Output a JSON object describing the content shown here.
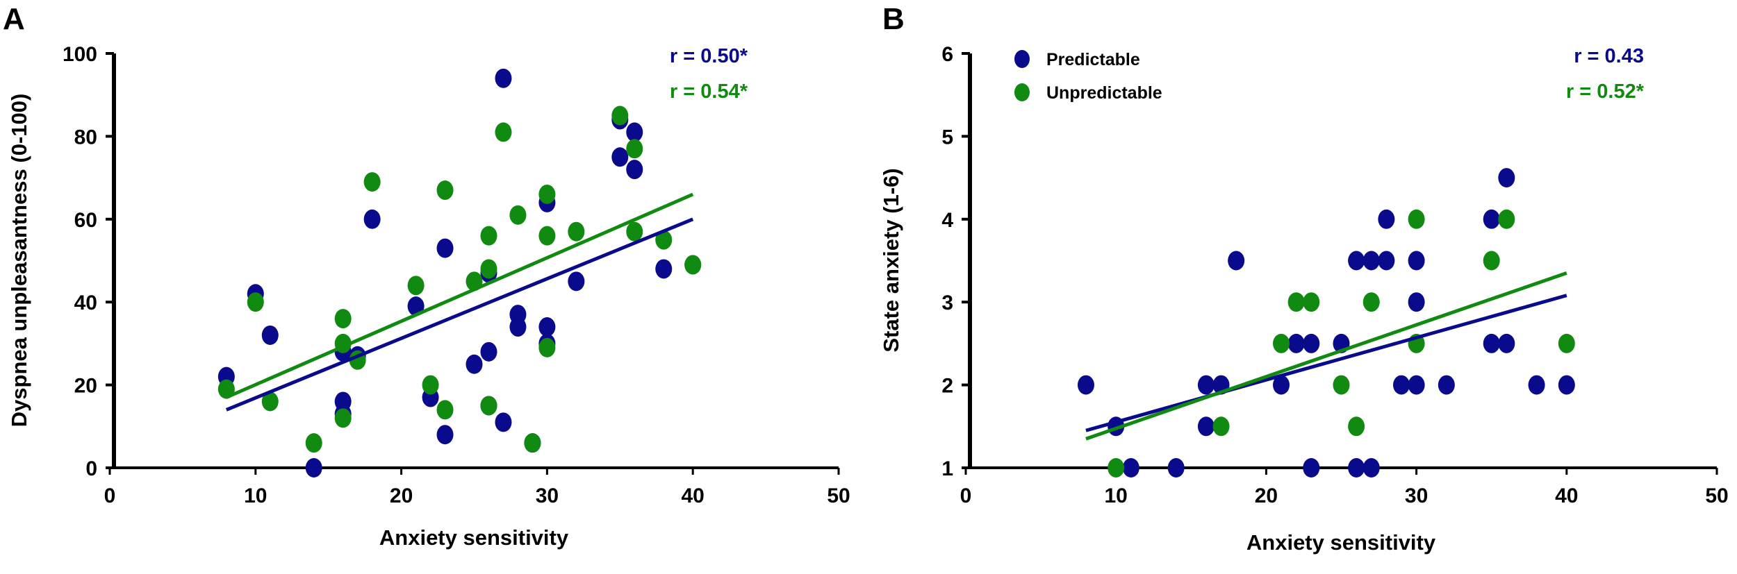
{
  "colors": {
    "predictable": "#0a0a8c",
    "unpredictable": "#118a11",
    "axis": "#000000"
  },
  "chart_data": [
    {
      "type": "scatter",
      "panel_label": "A",
      "xlabel": "Anxiety sensitivity",
      "ylabel": "Dyspnea unpleasantness (0-100)",
      "xlim": [
        0,
        50
      ],
      "ylim": [
        0,
        100
      ],
      "xticks": [
        0,
        10,
        20,
        30,
        40,
        50
      ],
      "yticks": [
        0,
        20,
        40,
        60,
        80,
        100
      ],
      "grid": false,
      "annotations": [
        {
          "text": "r = 0.50*",
          "series": "Predictable"
        },
        {
          "text": "r = 0.54*",
          "series": "Unpredictable"
        }
      ],
      "series": [
        {
          "name": "Predictable",
          "color": "#0a0a8c",
          "points": [
            [
              8,
              22
            ],
            [
              10,
              42
            ],
            [
              11,
              32
            ],
            [
              14,
              0
            ],
            [
              16,
              16
            ],
            [
              16,
              13
            ],
            [
              16,
              28
            ],
            [
              17,
              27
            ],
            [
              18,
              60
            ],
            [
              21,
              39
            ],
            [
              22,
              17
            ],
            [
              23,
              53
            ],
            [
              23,
              8
            ],
            [
              25,
              25
            ],
            [
              26,
              47
            ],
            [
              26,
              28
            ],
            [
              26,
              15
            ],
            [
              27,
              94
            ],
            [
              27,
              11
            ],
            [
              28,
              37
            ],
            [
              28,
              34
            ],
            [
              29,
              6
            ],
            [
              30,
              64
            ],
            [
              30,
              34
            ],
            [
              30,
              30
            ],
            [
              32,
              45
            ],
            [
              35,
              84
            ],
            [
              35,
              75
            ],
            [
              36,
              81
            ],
            [
              36,
              72
            ],
            [
              38,
              48
            ],
            [
              40,
              49
            ]
          ],
          "fit": [
            [
              8,
              14
            ],
            [
              40,
              60
            ]
          ]
        },
        {
          "name": "Unpredictable",
          "color": "#118a11",
          "points": [
            [
              8,
              19
            ],
            [
              10,
              40
            ],
            [
              11,
              16
            ],
            [
              14,
              6
            ],
            [
              16,
              36
            ],
            [
              16,
              30
            ],
            [
              16,
              12
            ],
            [
              17,
              26
            ],
            [
              18,
              69
            ],
            [
              21,
              44
            ],
            [
              22,
              20
            ],
            [
              23,
              67
            ],
            [
              23,
              14
            ],
            [
              25,
              45
            ],
            [
              26,
              56
            ],
            [
              26,
              48
            ],
            [
              26,
              15
            ],
            [
              27,
              81
            ],
            [
              28,
              61
            ],
            [
              29,
              6
            ],
            [
              30,
              66
            ],
            [
              30,
              56
            ],
            [
              30,
              29
            ],
            [
              32,
              57
            ],
            [
              35,
              85
            ],
            [
              36,
              77
            ],
            [
              36,
              57
            ],
            [
              38,
              55
            ],
            [
              40,
              49
            ]
          ],
          "fit": [
            [
              8,
              17
            ],
            [
              40,
              66
            ]
          ]
        }
      ]
    },
    {
      "type": "scatter",
      "panel_label": "B",
      "xlabel": "Anxiety sensitivity",
      "ylabel": "State anxiety (1-6)",
      "xlim": [
        0,
        50
      ],
      "ylim": [
        1,
        6
      ],
      "xticks": [
        0,
        10,
        20,
        30,
        40,
        50
      ],
      "yticks": [
        1,
        2,
        3,
        4,
        5,
        6
      ],
      "grid": false,
      "legend": {
        "placement": "top-left",
        "entries": [
          "Predictable",
          "Unpredictable"
        ]
      },
      "annotations": [
        {
          "text": "r = 0.43",
          "series": "Predictable"
        },
        {
          "text": "r = 0.52*",
          "series": "Unpredictable"
        }
      ],
      "series": [
        {
          "name": "Predictable",
          "color": "#0a0a8c",
          "points": [
            [
              8,
              2
            ],
            [
              10,
              1.5
            ],
            [
              11,
              1
            ],
            [
              14,
              1
            ],
            [
              16,
              2
            ],
            [
              16,
              1.5
            ],
            [
              17,
              2
            ],
            [
              18,
              3.5
            ],
            [
              21,
              2
            ],
            [
              22,
              2.5
            ],
            [
              23,
              2.5
            ],
            [
              23,
              1
            ],
            [
              25,
              2.5
            ],
            [
              26,
              3.5
            ],
            [
              26,
              1
            ],
            [
              27,
              3.5
            ],
            [
              27,
              1
            ],
            [
              28,
              3.5
            ],
            [
              28,
              4
            ],
            [
              29,
              2
            ],
            [
              30,
              3.5
            ],
            [
              30,
              3
            ],
            [
              30,
              2
            ],
            [
              32,
              2
            ],
            [
              35,
              4
            ],
            [
              35,
              2.5
            ],
            [
              36,
              4.5
            ],
            [
              36,
              2.5
            ],
            [
              38,
              2
            ],
            [
              40,
              2
            ]
          ],
          "fit": [
            [
              8,
              1.45
            ],
            [
              40,
              3.08
            ]
          ]
        },
        {
          "name": "Unpredictable",
          "color": "#118a11",
          "points": [
            [
              10,
              1
            ],
            [
              17,
              1.5
            ],
            [
              21,
              2.5
            ],
            [
              22,
              3
            ],
            [
              23,
              3
            ],
            [
              25,
              2
            ],
            [
              26,
              1.5
            ],
            [
              27,
              3
            ],
            [
              30,
              4
            ],
            [
              30,
              2.5
            ],
            [
              35,
              3.5
            ],
            [
              36,
              4
            ],
            [
              40,
              2.5
            ]
          ],
          "fit": [
            [
              8,
              1.35
            ],
            [
              40,
              3.35
            ]
          ]
        }
      ]
    }
  ]
}
